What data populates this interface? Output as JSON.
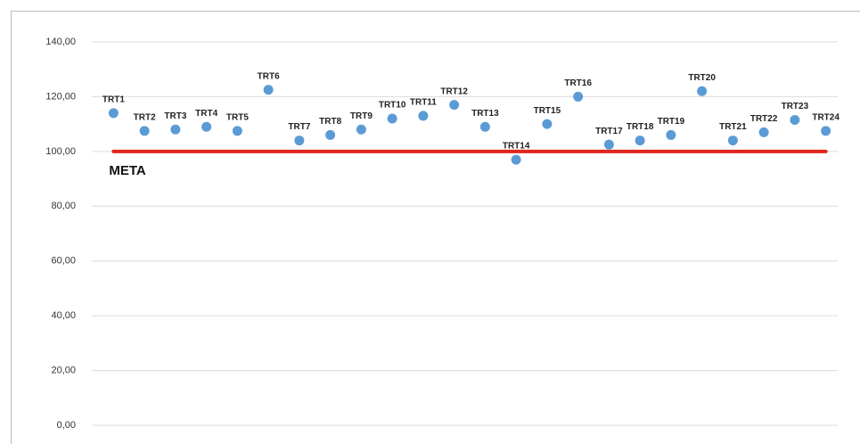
{
  "chart_data": {
    "type": "scatter",
    "categories": [
      "TRT1",
      "TRT2",
      "TRT3",
      "TRT4",
      "TRT5",
      "TRT6",
      "TRT7",
      "TRT8",
      "TRT9",
      "TRT10",
      "TRT11",
      "TRT12",
      "TRT13",
      "TRT14",
      "TRT15",
      "TRT16",
      "TRT17",
      "TRT18",
      "TRT19",
      "TRT20",
      "TRT21",
      "TRT22",
      "TRT23",
      "TRT24"
    ],
    "values": [
      114,
      107.5,
      108,
      109,
      107.5,
      122.5,
      104,
      106,
      108,
      112,
      113,
      117,
      109,
      97,
      110,
      120,
      102.5,
      104,
      106,
      122,
      104,
      107,
      111.5,
      107.5
    ],
    "color": "#5b9bd5",
    "target": {
      "label": "META",
      "value": 100,
      "color": "#e0261e"
    },
    "ylim": [
      0,
      140
    ],
    "yticks": [
      {
        "value": 0,
        "label": "0,00"
      },
      {
        "value": 20,
        "label": "20,00"
      },
      {
        "value": 40,
        "label": "40,00"
      },
      {
        "value": 60,
        "label": "60,00"
      },
      {
        "value": 80,
        "label": "80,00"
      },
      {
        "value": 100,
        "label": "100,00"
      },
      {
        "value": 120,
        "label": "120,00"
      },
      {
        "value": 140,
        "label": "140,00"
      }
    ],
    "grid": true
  }
}
